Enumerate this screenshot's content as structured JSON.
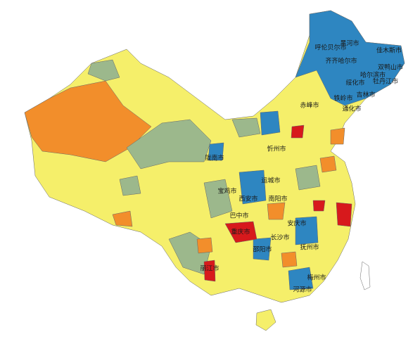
{
  "map": {
    "labels": [
      "呼伦贝尔市",
      "黑河市",
      "齐齐哈尔市",
      "佳木斯市",
      "双鸭山市",
      "哈尔滨市",
      "牡丹江市",
      "绥化市",
      "吉林市",
      "赤峰市",
      "铁岭市",
      "通化市",
      "忻州市",
      "运城市",
      "宝鸡市",
      "西安市",
      "陇南市",
      "巴中市",
      "南阳市",
      "安庆市",
      "抚州市",
      "邵阳市",
      "梅州市",
      "河源市",
      "丽江市",
      "重庆市",
      "长沙市"
    ]
  }
}
